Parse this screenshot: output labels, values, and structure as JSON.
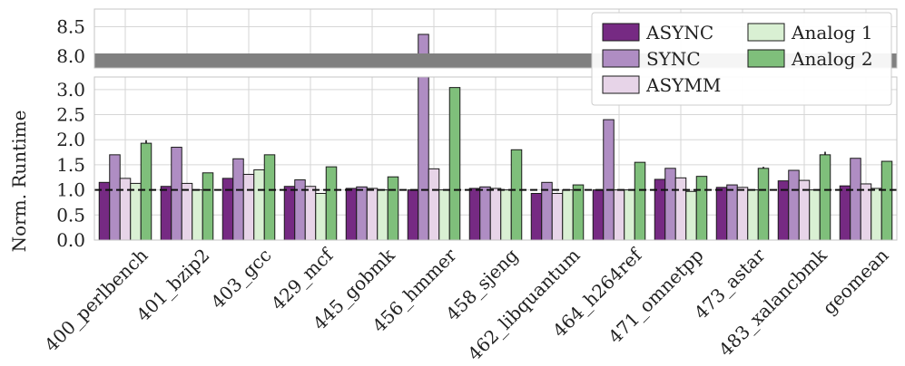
{
  "chart_data": {
    "type": "bar",
    "ylabel": "Norm. Runtime",
    "categories": [
      "400_perlbench",
      "401_bzip2",
      "403_gcc",
      "429_mcf",
      "445_gobmk",
      "456_hmmer",
      "458_sjeng",
      "462_libquantum",
      "464_h264ref",
      "471_omnetpp",
      "473_astar",
      "483_xalancbmk",
      "geomean"
    ],
    "series": [
      {
        "name": "ASYNC",
        "color": "#762a83",
        "values": [
          1.15,
          1.07,
          1.23,
          1.07,
          1.03,
          1.0,
          1.03,
          0.93,
          1.0,
          1.21,
          1.05,
          1.18,
          1.08
        ]
      },
      {
        "name": "SYNC",
        "color": "#af8dc3",
        "values": [
          1.7,
          1.85,
          1.62,
          1.2,
          1.06,
          8.37,
          1.06,
          1.15,
          2.4,
          1.43,
          1.1,
          1.39,
          1.63
        ]
      },
      {
        "name": "ASYMM",
        "color": "#e7d4e8",
        "values": [
          1.23,
          1.13,
          1.31,
          1.07,
          1.03,
          1.42,
          1.03,
          0.93,
          1.0,
          1.24,
          1.05,
          1.19,
          1.12
        ]
      },
      {
        "name": "Analog 1",
        "color": "#d9f0d3",
        "values": [
          1.13,
          1.0,
          1.4,
          0.93,
          1.0,
          1.0,
          1.0,
          1.0,
          1.0,
          0.97,
          1.0,
          1.0,
          1.03
        ]
      },
      {
        "name": "Analog 2",
        "color": "#7fbf7b",
        "values": [
          1.93,
          1.34,
          1.7,
          1.46,
          1.26,
          3.04,
          1.8,
          1.1,
          1.55,
          1.27,
          1.43,
          1.7,
          1.57
        ]
      }
    ],
    "error_markers": [
      0.06,
      0,
      0,
      0,
      0,
      0,
      0,
      0,
      0,
      0,
      0.03,
      0.06,
      0
    ],
    "yticks_lower": [
      "0.0",
      "0.5",
      "1.0",
      "1.5",
      "2.0",
      "2.5",
      "3.0"
    ],
    "yticks_upper": [
      "8.0",
      "8.5"
    ],
    "ylim_lower": [
      0,
      3.25
    ],
    "ylim_upper": [
      7.8,
      8.8
    ],
    "baseline": 1.0,
    "grid": true,
    "legend": "top-right",
    "axis_break": true
  }
}
